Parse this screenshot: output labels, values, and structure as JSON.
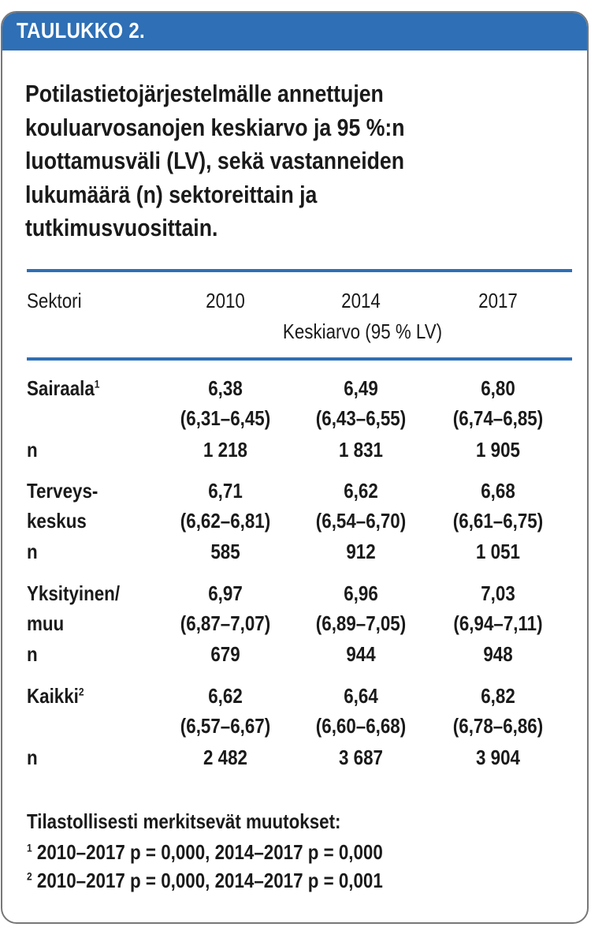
{
  "header": {
    "label": "TAULUKKO 2."
  },
  "title": {
    "lines": [
      "Potilastietojärjestelmälle annettujen",
      "kouluarvosanojen keskiarvo ja 95 %:n",
      "luottamusväli (LV), sekä vastanneiden",
      "lukumäärä (n) sektoreittain ja",
      "tutkimusvuosittain."
    ]
  },
  "table": {
    "col_header": "Sektori",
    "years": [
      "2010",
      "2014",
      "2017"
    ],
    "subheader": "Keskiarvo (95 % LV)",
    "rows": [
      {
        "label_lines": [
          "Sairaala",
          ""
        ],
        "sup": "1",
        "means": [
          "6,38",
          "6,49",
          "6,80"
        ],
        "cis": [
          "(6,31–6,45)",
          "(6,43–6,55)",
          "(6,74–6,85)"
        ],
        "n_label": "n",
        "n": [
          "1 218",
          "1 831",
          "1 905"
        ]
      },
      {
        "label_lines": [
          "Terveys-",
          "keskus"
        ],
        "sup": "",
        "means": [
          "6,71",
          "6,62",
          "6,68"
        ],
        "cis": [
          "(6,62–6,81)",
          "(6,54–6,70)",
          "(6,61–6,75)"
        ],
        "n_label": "n",
        "n": [
          "585",
          "912",
          "1 051"
        ]
      },
      {
        "label_lines": [
          "Yksityinen/",
          "muu"
        ],
        "sup": "",
        "means": [
          "6,97",
          "6,96",
          "7,03"
        ],
        "cis": [
          "(6,87–7,07)",
          "(6,89–7,05)",
          "(6,94–7,11)"
        ],
        "n_label": "n",
        "n": [
          "679",
          "944",
          "948"
        ]
      },
      {
        "label_lines": [
          "Kaikki",
          ""
        ],
        "sup": "2",
        "means": [
          "6,62",
          "6,64",
          "6,82"
        ],
        "cis": [
          "(6,57–6,67)",
          "(6,60–6,68)",
          "(6,78–6,86)"
        ],
        "n_label": "n",
        "n": [
          "2 482",
          "3 687",
          "3 904"
        ]
      }
    ]
  },
  "notes": {
    "heading": "Tilastollisesti merkitsevät muutokset:",
    "items": [
      {
        "marker": "1",
        "text": "2010–2017 p = 0,000, 2014–2017 p = 0,000"
      },
      {
        "marker": "2",
        "text": "2010–2017 p = 0,000, 2014–2017 p = 0,001"
      }
    ]
  }
}
